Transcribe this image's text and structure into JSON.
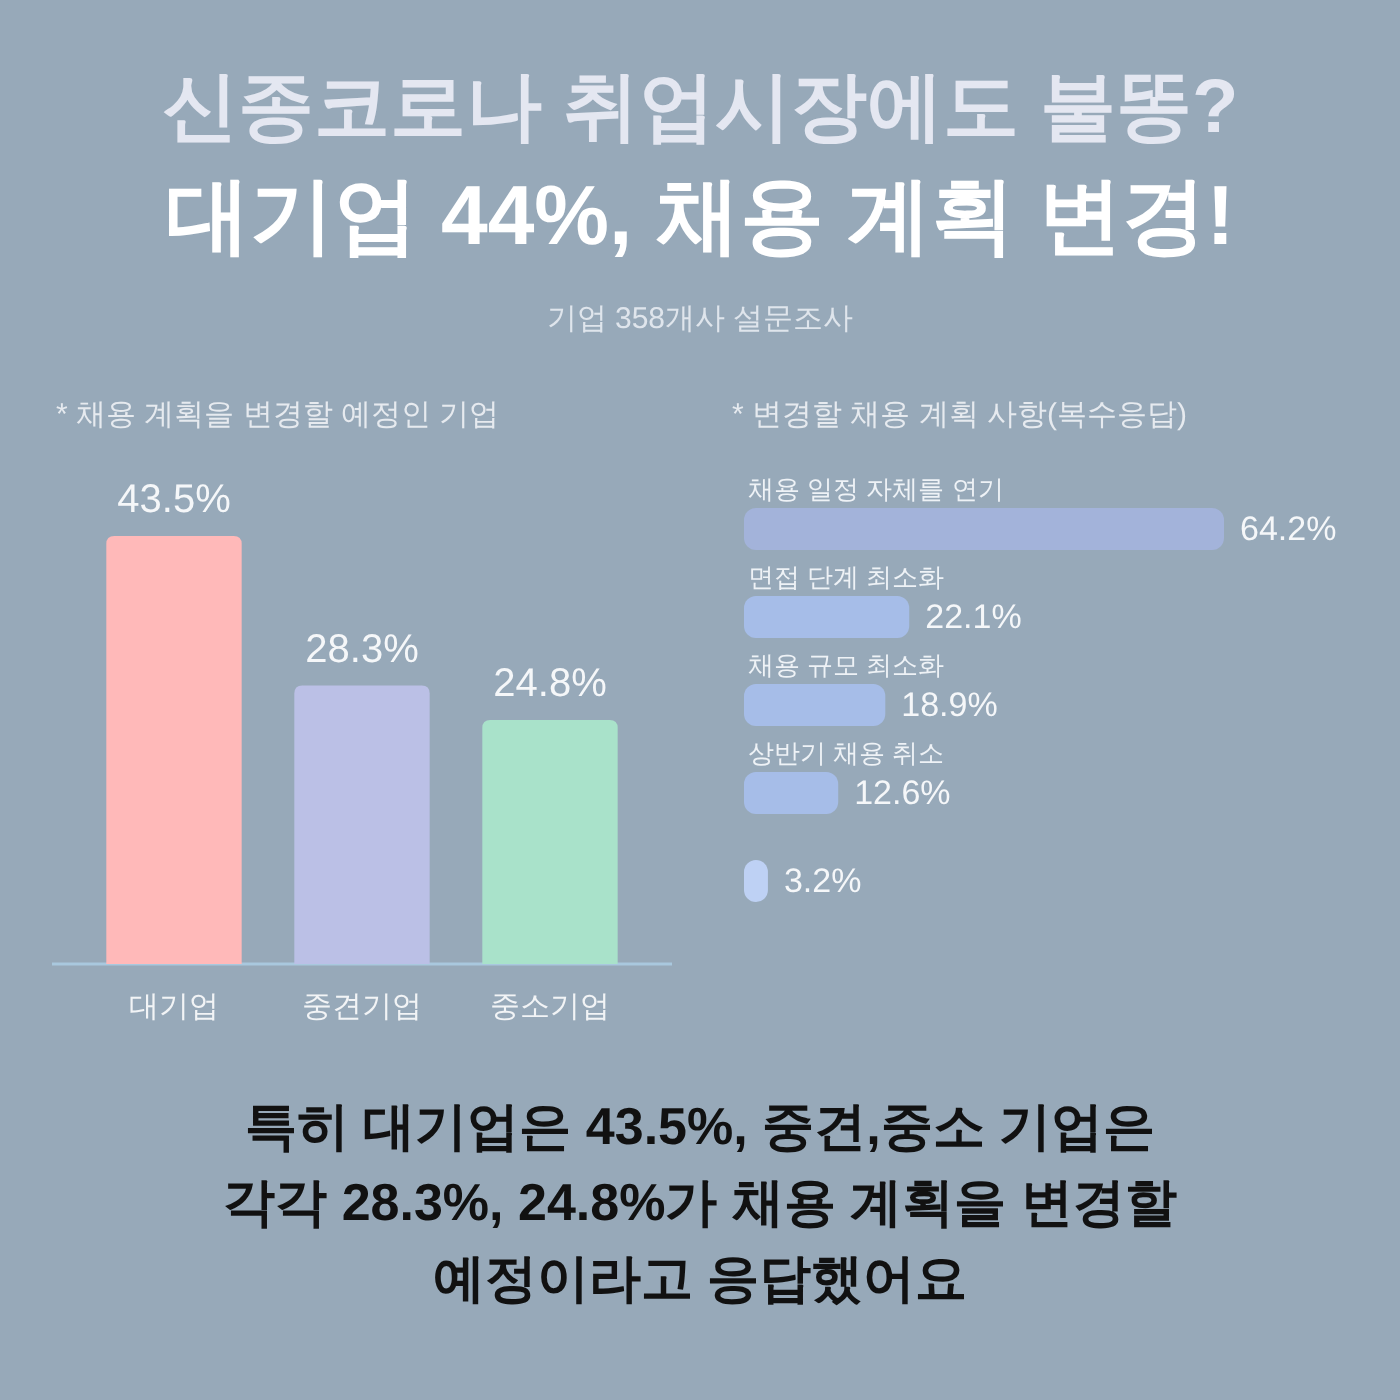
{
  "chart_data": [
    {
      "type": "other",
      "title": "신종코로나 취업시장에도 불똥?",
      "subtitle": "대기업 44%, 채용 계획 변경!",
      "annotations": [
        "기업 358개사 설문조사",
        "특히 대기업은 43.5%, 중견,중소 기업은 각각 28.3%, 24.8%가 채용 계획을 변경할 예정이라고 응답했어요"
      ]
    },
    {
      "type": "bar",
      "title": "* 채용 계획을 변경할 예정인 기업",
      "categories": [
        "대기업",
        "중견기업",
        "중소기업"
      ],
      "values": [
        43.5,
        28.3,
        24.8
      ],
      "colors": [
        "#ffb9b9",
        "#bbc0e6",
        "#a9e2ca"
      ],
      "value_labels": [
        "43.5%",
        "28.3%",
        "24.8%"
      ]
    },
    {
      "type": "bar",
      "orientation": "horizontal",
      "title": "* 변경할 채용 계획 사항(복수응답)",
      "categories": [
        "채용 일정 자체를 연기",
        "면접 단계 최소화",
        "채용 규모 최소화",
        "상반기 채용 취소",
        null,
        null
      ],
      "values": [
        64.2,
        22.1,
        18.9,
        12.6,
        3.2,
        null
      ],
      "colors": [
        "#a3b3da",
        "#a6bde8",
        "#a6bde8",
        "#a6bde8",
        "#bed1f4",
        null
      ],
      "value_labels": [
        "64.2%",
        "22.1%",
        "18.9%",
        "12.6%",
        "3.2%",
        null
      ]
    }
  ]
}
